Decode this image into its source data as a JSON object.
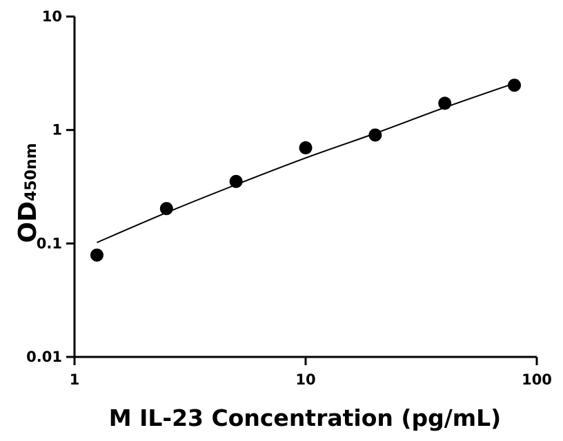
{
  "chart_data": {
    "type": "scatter",
    "x_scale": "log",
    "y_scale": "log",
    "xlabel": "M IL-23 Concentration (pg/mL)",
    "ylabel": {
      "main": "OD",
      "sub": "450nm"
    },
    "xlim": [
      1,
      100
    ],
    "ylim": [
      0.01,
      10
    ],
    "x_ticks": [
      {
        "value": 1,
        "label": "1"
      },
      {
        "value": 10,
        "label": "10"
      },
      {
        "value": 100,
        "label": "100"
      }
    ],
    "y_ticks": [
      {
        "value": 0.01,
        "label": "0.01"
      },
      {
        "value": 0.1,
        "label": "0.1"
      },
      {
        "value": 1,
        "label": "1"
      },
      {
        "value": 10,
        "label": "10"
      }
    ],
    "grid": false,
    "legend": "none",
    "series": [
      {
        "x": [
          1.25,
          2.5,
          5,
          10,
          20,
          40,
          80
        ],
        "y": [
          0.079,
          0.203,
          0.352,
          0.697,
          0.903,
          1.72,
          2.48
        ]
      }
    ],
    "fit_curve": {
      "type": "line",
      "x": [
        1.25,
        2.5,
        5,
        10,
        20,
        40,
        80
      ],
      "y": [
        0.102,
        0.187,
        0.33,
        0.567,
        0.935,
        1.58,
        2.58
      ]
    },
    "colors": {
      "marker": "#000000",
      "line": "#000000",
      "axis": "#000000"
    }
  }
}
